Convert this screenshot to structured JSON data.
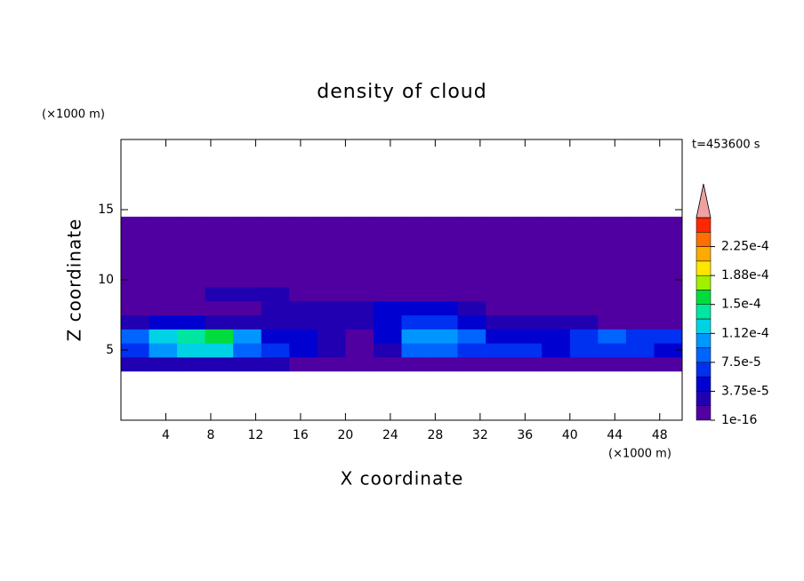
{
  "chart_data": {
    "type": "heatmap",
    "title": "density of cloud",
    "xlabel": "X coordinate",
    "ylabel": "Z coordinate",
    "x_unit": "(×1000 m)",
    "y_unit": "(×1000 m)",
    "annotation": "t=453600 s",
    "xlim": [
      0,
      50
    ],
    "ylim": [
      0,
      20
    ],
    "xticks": [
      4,
      8,
      12,
      16,
      20,
      24,
      28,
      32,
      36,
      40,
      44,
      48
    ],
    "yticks": [
      5,
      10,
      15
    ],
    "xbins": [
      0,
      2.5,
      5,
      7.5,
      10,
      12.5,
      15,
      17.5,
      20,
      22.5,
      25,
      27.5,
      30,
      32.5,
      35,
      37.5,
      40,
      42.5,
      45,
      47.5,
      50
    ],
    "ybins": [
      3.5,
      4.5,
      5.5,
      6.5,
      7.5,
      8.5,
      9.5,
      10.5,
      11.5,
      12.5,
      13.5,
      14.5
    ],
    "values": [
      [
        2e-05,
        3e-05,
        3e-05,
        3e-05,
        2e-05,
        2e-05,
        1e-05,
        5e-06,
        5e-06,
        5e-06,
        1e-05,
        1e-05,
        5e-06,
        5e-06,
        5e-06,
        5e-06,
        5e-06,
        1e-05,
        1e-05,
        1e-05
      ],
      [
        7e-05,
        0.0001,
        0.00012,
        0.00013,
        9e-05,
        6e-05,
        5e-05,
        2e-05,
        1e-05,
        3e-05,
        8e-05,
        9e-05,
        6e-05,
        7e-05,
        6e-05,
        5e-05,
        6e-05,
        7e-05,
        6e-05,
        5e-05
      ],
      [
        8e-05,
        0.00013,
        0.00014,
        0.00016,
        0.0001,
        5e-05,
        4e-05,
        2e-05,
        1e-05,
        4e-05,
        0.0001,
        0.00011,
        8e-05,
        5e-05,
        4e-05,
        5e-05,
        6e-05,
        8e-05,
        7e-05,
        6e-05
      ],
      [
        3e-05,
        4e-05,
        4e-05,
        3e-05,
        3e-05,
        3e-05,
        2e-05,
        2e-05,
        3e-05,
        4e-05,
        7e-05,
        6e-05,
        4e-05,
        3e-05,
        2e-05,
        2e-05,
        2e-05,
        1e-05,
        5e-06,
        5e-06
      ],
      [
        5e-06,
        5e-06,
        5e-06,
        5e-06,
        1e-05,
        2e-05,
        2e-05,
        3e-05,
        3e-05,
        4e-05,
        5e-05,
        4e-05,
        2e-05,
        1e-05,
        5e-06,
        5e-06,
        5e-06,
        5e-06,
        5e-06,
        5e-06
      ],
      [
        5e-06,
        5e-06,
        5e-06,
        2e-05,
        2e-05,
        2e-05,
        1e-05,
        5e-06,
        5e-06,
        5e-06,
        5e-06,
        5e-06,
        5e-06,
        5e-06,
        5e-06,
        5e-06,
        5e-06,
        5e-06,
        5e-06,
        5e-06
      ],
      [
        5e-06,
        5e-06,
        5e-06,
        5e-06,
        5e-06,
        5e-06,
        5e-06,
        5e-06,
        5e-06,
        5e-06,
        5e-06,
        5e-06,
        5e-06,
        5e-06,
        5e-06,
        5e-06,
        5e-06,
        5e-06,
        5e-06,
        5e-06
      ],
      [
        5e-06,
        5e-06,
        5e-06,
        5e-06,
        5e-06,
        5e-06,
        5e-06,
        5e-06,
        5e-06,
        5e-06,
        5e-06,
        5e-06,
        5e-06,
        5e-06,
        5e-06,
        5e-06,
        5e-06,
        5e-06,
        5e-06,
        5e-06
      ],
      [
        5e-06,
        5e-06,
        5e-06,
        5e-06,
        5e-06,
        5e-06,
        5e-06,
        5e-06,
        5e-06,
        5e-06,
        5e-06,
        5e-06,
        5e-06,
        5e-06,
        5e-06,
        5e-06,
        5e-06,
        5e-06,
        5e-06,
        5e-06
      ],
      [
        5e-06,
        5e-06,
        5e-06,
        5e-06,
        5e-06,
        5e-06,
        5e-06,
        5e-06,
        5e-06,
        5e-06,
        5e-06,
        5e-06,
        5e-06,
        5e-06,
        5e-06,
        5e-06,
        5e-06,
        5e-06,
        5e-06,
        5e-06
      ],
      [
        5e-06,
        5e-06,
        5e-06,
        5e-06,
        5e-06,
        5e-06,
        5e-06,
        5e-06,
        5e-06,
        5e-06,
        5e-06,
        5e-06,
        5e-06,
        5e-06,
        5e-06,
        5e-06,
        5e-06,
        5e-06,
        5e-06,
        5e-06
      ]
    ],
    "colorbar": {
      "levels": [
        1e-16,
        1.875e-05,
        3.75e-05,
        5.625e-05,
        7.5e-05,
        9.375e-05,
        0.0001125,
        0.00013125,
        0.00015,
        0.00016875,
        0.0001875,
        0.00020625,
        0.000225,
        0.00024375,
        0.0002625
      ],
      "colors": [
        "#5000a0",
        "#2000b0",
        "#0000d0",
        "#0030f0",
        "#0064ff",
        "#0096ff",
        "#00d2e6",
        "#00e6a0",
        "#00dc3c",
        "#a0f000",
        "#ffe600",
        "#ffaa00",
        "#ff6e00",
        "#ff2800"
      ],
      "overflow_color": "#f0a0a0",
      "ticks": [
        {
          "value": 1e-16,
          "label": "1e-16"
        },
        {
          "value": 3.75e-05,
          "label": "3.75e-5"
        },
        {
          "value": 7.5e-05,
          "label": "7.5e-5"
        },
        {
          "value": 0.0001125,
          "label": "1.12e-4"
        },
        {
          "value": 0.00015,
          "label": "1.5e-4"
        },
        {
          "value": 0.0001875,
          "label": "1.88e-4"
        },
        {
          "value": 0.000225,
          "label": "2.25e-4"
        }
      ]
    }
  }
}
